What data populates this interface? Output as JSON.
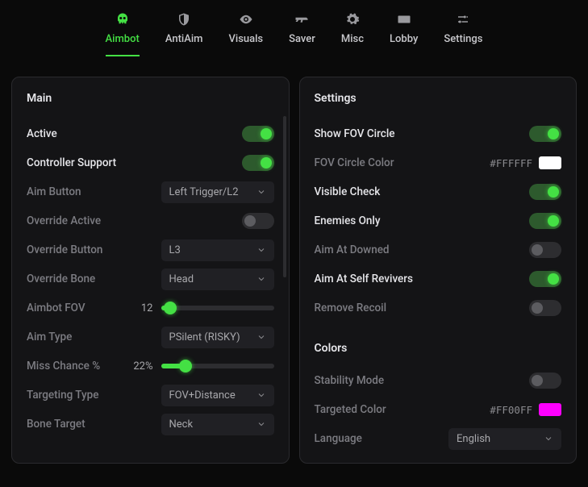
{
  "colors": {
    "accent": "#44e044",
    "bg": "#0a0a0a",
    "panel": "#141416",
    "border": "#2a2a2e",
    "control": "#202024",
    "track": "#2d2d30",
    "text": "#e6e6ea",
    "text_dim": "#7c7c82"
  },
  "tabs": [
    {
      "id": "aimbot",
      "label": "Aimbot",
      "icon": "skull",
      "active": true
    },
    {
      "id": "antiaim",
      "label": "AntiAim",
      "icon": "shield",
      "active": false
    },
    {
      "id": "visuals",
      "label": "Visuals",
      "icon": "eye",
      "active": false
    },
    {
      "id": "saver",
      "label": "Saver",
      "icon": "gun",
      "active": false
    },
    {
      "id": "misc",
      "label": "Misc",
      "icon": "gear",
      "active": false
    },
    {
      "id": "lobby",
      "label": "Lobby",
      "icon": "keyboard",
      "active": false
    },
    {
      "id": "settings",
      "label": "Settings",
      "icon": "sliders",
      "active": false
    }
  ],
  "left": {
    "title": "Main",
    "rows": [
      {
        "type": "toggle",
        "label": "Active",
        "on": true,
        "dim": false
      },
      {
        "type": "toggle",
        "label": "Controller Support",
        "on": true,
        "dim": false
      },
      {
        "type": "select",
        "label": "Aim Button",
        "value": "Left Trigger/L2",
        "dim": true
      },
      {
        "type": "toggle",
        "label": "Override Active",
        "on": false,
        "dim": true
      },
      {
        "type": "select",
        "label": "Override Button",
        "value": "L3",
        "dim": true
      },
      {
        "type": "select",
        "label": "Override Bone",
        "value": "Head",
        "dim": true
      },
      {
        "type": "slider",
        "label": "Aimbot FOV",
        "display": "12",
        "pct": 8,
        "dim": true
      },
      {
        "type": "select",
        "label": "Aim Type",
        "value": "PSilent (RISKY)",
        "dim": true
      },
      {
        "type": "slider",
        "label": "Miss Chance %",
        "display": "22%",
        "pct": 22,
        "dim": true
      },
      {
        "type": "select",
        "label": "Targeting Type",
        "value": "FOV+Distance",
        "dim": true
      },
      {
        "type": "select",
        "label": "Bone Target",
        "value": "Neck",
        "dim": true
      }
    ]
  },
  "right": {
    "title": "Settings",
    "rows": [
      {
        "type": "toggle",
        "label": "Show FOV Circle",
        "on": true,
        "dim": false
      },
      {
        "type": "color",
        "label": "FOV Circle Color",
        "hex": "#FFFFFF",
        "swatch": "#ffffff",
        "dim": true
      },
      {
        "type": "toggle",
        "label": "Visible Check",
        "on": true,
        "dim": false
      },
      {
        "type": "toggle",
        "label": "Enemies Only",
        "on": true,
        "dim": false
      },
      {
        "type": "toggle",
        "label": "Aim At Downed",
        "on": false,
        "dim": true
      },
      {
        "type": "toggle",
        "label": "Aim At Self Revivers",
        "on": true,
        "dim": false
      },
      {
        "type": "toggle",
        "label": "Remove Recoil",
        "on": false,
        "dim": true
      }
    ],
    "colors_title": "Colors",
    "colors_rows": [
      {
        "type": "toggle",
        "label": "Stability Mode",
        "on": false,
        "dim": true
      },
      {
        "type": "color",
        "label": "Targeted Color",
        "hex": "#FF00FF",
        "swatch": "#ff00ff",
        "dim": true
      },
      {
        "type": "select",
        "label": "Language",
        "value": "English",
        "dim": true
      }
    ]
  }
}
